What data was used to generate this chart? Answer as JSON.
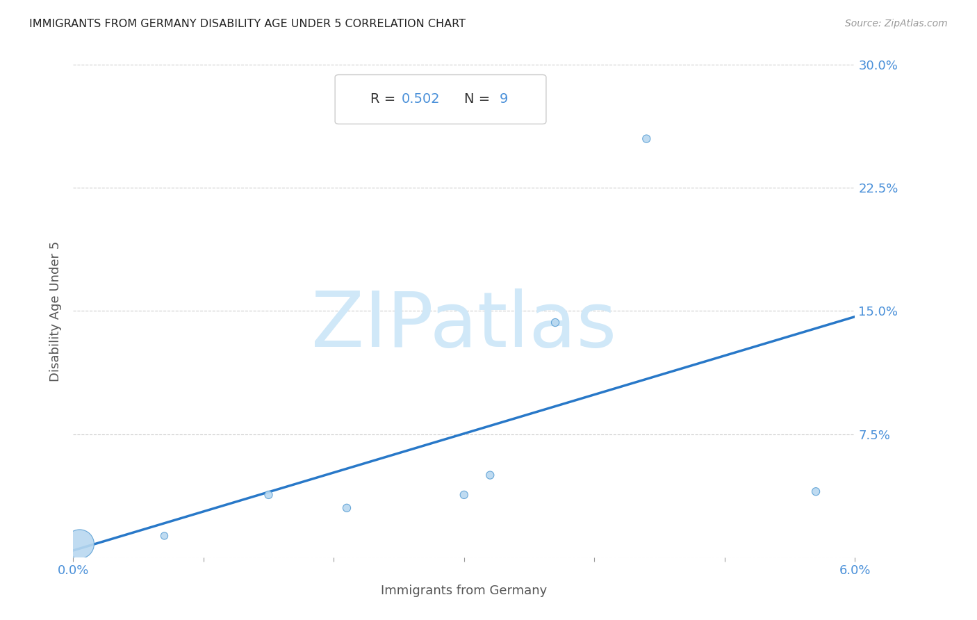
{
  "title": "IMMIGRANTS FROM GERMANY DISABILITY AGE UNDER 5 CORRELATION CHART",
  "source": "Source: ZipAtlas.com",
  "xlabel": "Immigrants from Germany",
  "ylabel": "Disability Age Under 5",
  "R": 0.502,
  "N": 9,
  "x_data": [
    0.0005,
    0.007,
    0.015,
    0.021,
    0.03,
    0.032,
    0.037,
    0.044,
    0.057
  ],
  "y_data": [
    0.008,
    0.013,
    0.038,
    0.03,
    0.038,
    0.05,
    0.143,
    0.255,
    0.04
  ],
  "sizes": [
    900,
    55,
    65,
    65,
    65,
    65,
    65,
    65,
    65
  ],
  "xlim": [
    0.0,
    0.06
  ],
  "ylim": [
    0.0,
    0.3
  ],
  "xticks": [
    0.0,
    0.01,
    0.02,
    0.03,
    0.04,
    0.05,
    0.06
  ],
  "xtick_labels_show": [
    "0.0%",
    "",
    "",
    "",
    "",
    "",
    "6.0%"
  ],
  "yticks": [
    0.0,
    0.075,
    0.15,
    0.225,
    0.3
  ],
  "ytick_labels": [
    "",
    "7.5%",
    "15.0%",
    "22.5%",
    "30.0%"
  ],
  "dot_color": "#b8d8f0",
  "dot_edge_color": "#5a9fd4",
  "line_color": "#2878c8",
  "title_color": "#222222",
  "axis_label_color": "#555555",
  "tick_label_color": "#4a90d9",
  "background_color": "#ffffff",
  "grid_color": "#cccccc",
  "watermark_color": "#d0e8f8",
  "stat_label_color": "#333333",
  "stat_value_color": "#4a90d9"
}
